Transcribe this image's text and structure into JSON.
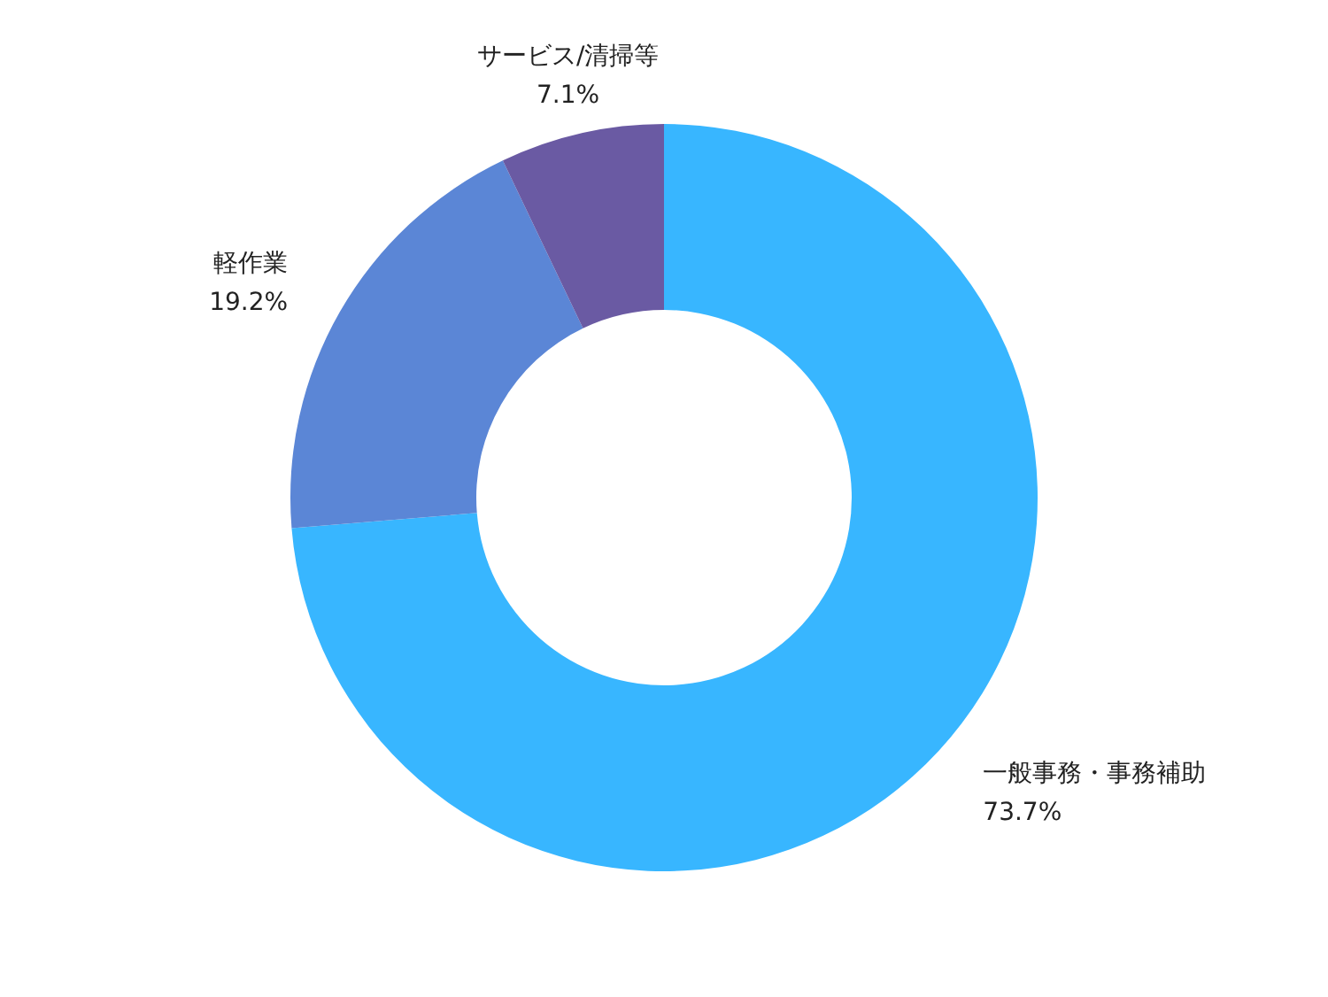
{
  "chart_data": {
    "type": "donut",
    "categories": [
      "一般事務・事務補助",
      "軽作業",
      "サービス/清掃等"
    ],
    "values": [
      73.7,
      19.2,
      7.1
    ],
    "colors": [
      "#38b6ff",
      "#5b86d6",
      "#6a5aa3"
    ],
    "value_labels": [
      "73.7%",
      "19.2%",
      "7.1%"
    ]
  }
}
